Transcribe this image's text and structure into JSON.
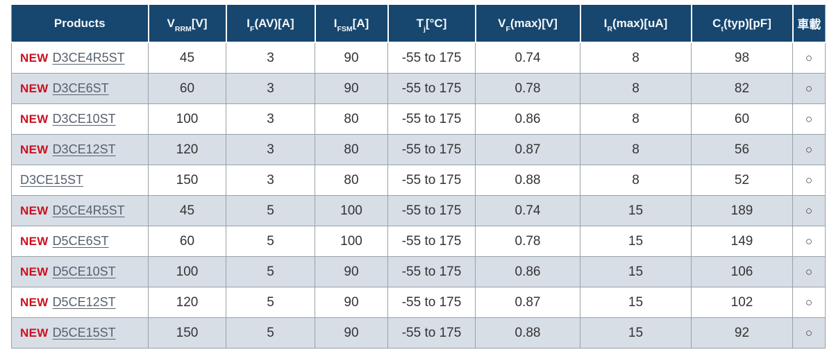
{
  "table": {
    "header": {
      "columns": [
        {
          "main": "Products",
          "sub": "",
          "rest": ""
        },
        {
          "main": "V",
          "sub": "RRM",
          "rest": "[V]"
        },
        {
          "main": "I",
          "sub": "F",
          "rest": "(AV)[A]"
        },
        {
          "main": "I",
          "sub": "FSM",
          "rest": "[A]"
        },
        {
          "main": "T",
          "sub": "j",
          "rest": "[°C]"
        },
        {
          "main": "V",
          "sub": "F",
          "rest": "(max)[V]"
        },
        {
          "main": "I",
          "sub": "R",
          "rest": "(max)[uA]"
        },
        {
          "main": "C",
          "sub": "t",
          "rest": "(typ)[pF]"
        },
        {
          "main": "車載",
          "sub": "",
          "rest": ""
        }
      ]
    },
    "new_label": "NEW",
    "rows": [
      {
        "is_new": true,
        "product": "D3CE4R5ST",
        "values": [
          "45",
          "3",
          "90",
          "-55 to 175",
          "0.74",
          "8",
          "98"
        ],
        "automotive": "○"
      },
      {
        "is_new": true,
        "product": "D3CE6ST",
        "values": [
          "60",
          "3",
          "90",
          "-55 to 175",
          "0.78",
          "8",
          "82"
        ],
        "automotive": "○"
      },
      {
        "is_new": true,
        "product": "D3CE10ST",
        "values": [
          "100",
          "3",
          "80",
          "-55 to 175",
          "0.86",
          "8",
          "60"
        ],
        "automotive": "○"
      },
      {
        "is_new": true,
        "product": "D3CE12ST",
        "values": [
          "120",
          "3",
          "80",
          "-55 to 175",
          "0.87",
          "8",
          "56"
        ],
        "automotive": "○"
      },
      {
        "is_new": false,
        "product": "D3CE15ST",
        "values": [
          "150",
          "3",
          "80",
          "-55 to 175",
          "0.88",
          "8",
          "52"
        ],
        "automotive": "○"
      },
      {
        "is_new": true,
        "product": "D5CE4R5ST",
        "values": [
          "45",
          "5",
          "100",
          "-55 to 175",
          "0.74",
          "15",
          "189"
        ],
        "automotive": "○"
      },
      {
        "is_new": true,
        "product": "D5CE6ST",
        "values": [
          "60",
          "5",
          "100",
          "-55 to 175",
          "0.78",
          "15",
          "149"
        ],
        "automotive": "○"
      },
      {
        "is_new": true,
        "product": "D5CE10ST",
        "values": [
          "100",
          "5",
          "90",
          "-55 to 175",
          "0.86",
          "15",
          "106"
        ],
        "automotive": "○"
      },
      {
        "is_new": true,
        "product": "D5CE12ST",
        "values": [
          "120",
          "5",
          "90",
          "-55 to 175",
          "0.87",
          "15",
          "102"
        ],
        "automotive": "○"
      },
      {
        "is_new": true,
        "product": "D5CE15ST",
        "values": [
          "150",
          "5",
          "90",
          "-55 to 175",
          "0.88",
          "15",
          "92"
        ],
        "automotive": "○"
      }
    ]
  },
  "colors": {
    "header_bg": "#17466e",
    "alt_row_bg": "#d8dee6",
    "new_text": "#cb1020",
    "link_text": "#56616e",
    "body_text": "#333333",
    "border": "#97a0a8"
  }
}
